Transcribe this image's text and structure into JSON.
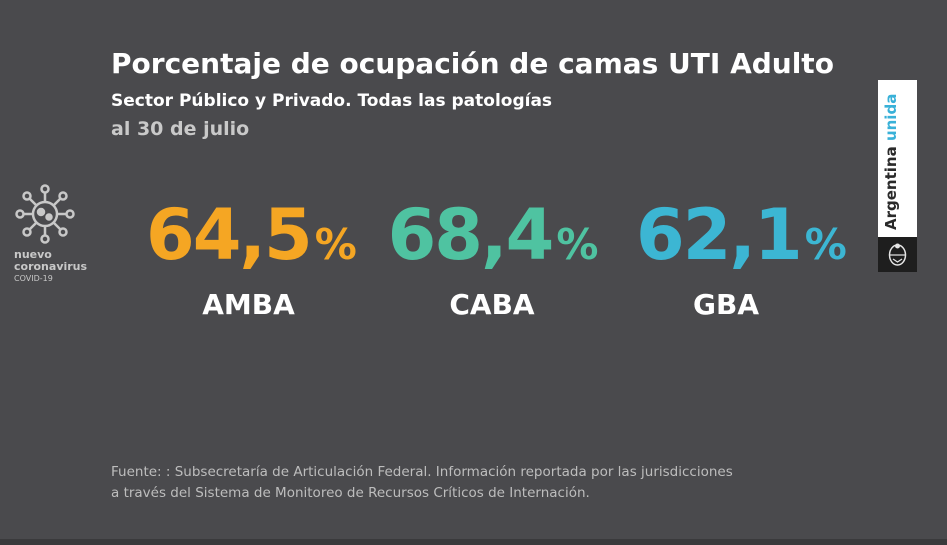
{
  "header": {
    "title": "Porcentaje de ocupación de camas UTI Adulto",
    "subtitle": "Sector Público y Privado. Todas las patologías",
    "date": "al 30 de julio"
  },
  "covid_logo": {
    "icon": "virus-icon",
    "line1": "nuevo",
    "line2": "coronavirus",
    "line3": "COVID-19"
  },
  "stats": [
    {
      "value": "64,5",
      "unit": "%",
      "label": "AMBA",
      "color": "#f5a623"
    },
    {
      "value": "68,4",
      "unit": "%",
      "label": "CABA",
      "color": "#4fc3a1"
    },
    {
      "value": "62,1",
      "unit": "%",
      "label": "GBA",
      "color": "#3cb6d3"
    }
  ],
  "brand": {
    "text_main": "Argentina",
    "text_accent": "unida",
    "seal_icon": "national-seal-icon"
  },
  "source": {
    "line1": "Fuente: : Subsecretaría de Articulación Federal. Información reportada por las jurisdicciones",
    "line2": "a través del Sistema de Monitoreo de Recursos Críticos de Internación."
  }
}
